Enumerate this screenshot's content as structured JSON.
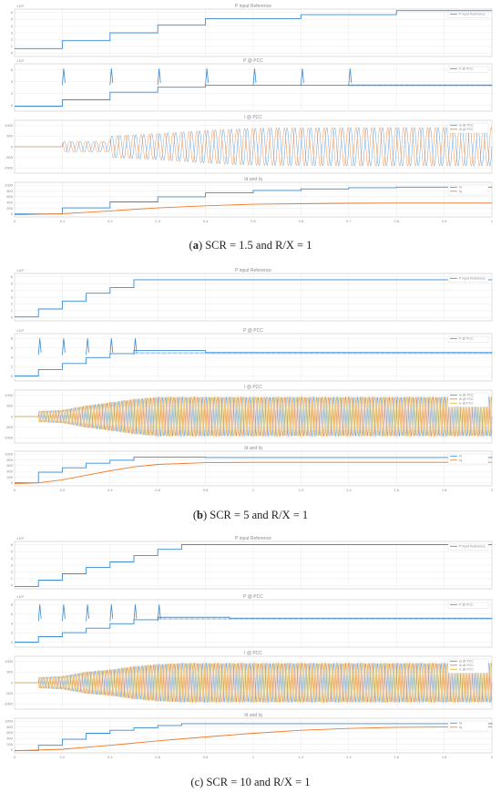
{
  "colors": {
    "blue": "#3c8bd4",
    "orange": "#f07a2a",
    "yellow": "#e8b925",
    "grid": "#e4e4e4",
    "frame": "#c8c8c8"
  },
  "captions": [
    {
      "letter": "a",
      "rest": ") SCR = 1.5 and R/X = 1"
    },
    {
      "letter": "b",
      "rest": ") SCR = 5 and R/X = 1"
    },
    {
      "letter": "c",
      "rest": ") SCR = 10 and R/X = 1"
    }
  ],
  "chart_data": [
    {
      "type": "line",
      "case": "a",
      "xlim": [
        0,
        1
      ],
      "x_ticks": [
        "0",
        "0.1",
        "0.2",
        "0.3",
        "0.4",
        "0.5",
        "0.6",
        "0.7",
        "0.8",
        "0.9",
        "1"
      ],
      "panels": [
        {
          "title": "P input Reference",
          "kind": "step",
          "exp": "×10⁶",
          "yticks": [
            "0",
            "1",
            "2",
            "3",
            "4",
            "5",
            "6"
          ],
          "ylim": [
            0,
            6
          ],
          "series": [
            {
              "name": "P input Reference",
              "color": "blue",
              "steps": [
                [
                  0,
                  1
                ],
                [
                  0.1,
                  2
                ],
                [
                  0.2,
                  3
                ],
                [
                  0.3,
                  4
                ],
                [
                  0.4,
                  4.8
                ],
                [
                  0.6,
                  5.3
                ],
                [
                  0.8,
                  5.8
                ],
                [
                  1,
                  5.8
                ]
              ]
            }
          ]
        },
        {
          "title": "P @ PCC",
          "kind": "step",
          "exp": "×10⁶",
          "yticks": [
            "0",
            "2",
            "4",
            "6"
          ],
          "ylim": [
            -0.5,
            7
          ],
          "series": [
            {
              "name": "P @ PCC",
              "color": "blue",
              "steps": [
                [
                  0,
                  0.3
                ],
                [
                  0.1,
                  1.3
                ],
                [
                  0.2,
                  2.5
                ],
                [
                  0.3,
                  3.3
                ],
                [
                  0.4,
                  3.6
                ],
                [
                  0.5,
                  3.6
                ],
                [
                  0.6,
                  3.6
                ],
                [
                  0.7,
                  3.6
                ],
                [
                  1,
                  3.6
                ]
              ],
              "spikes": [
                0.1,
                0.2,
                0.3,
                0.4,
                0.5,
                0.6,
                0.7
              ],
              "noise": 0.15
            }
          ]
        },
        {
          "title": "I @ PCC",
          "kind": "ac",
          "yticks": [
            "1000",
            "500",
            "0",
            "-500",
            "-1000"
          ],
          "ylim": [
            -1200,
            1200
          ],
          "envelope": [
            [
              0,
              0
            ],
            [
              0.1,
              0
            ],
            [
              0.1,
              250
            ],
            [
              0.2,
              250
            ],
            [
              0.2,
              500
            ],
            [
              0.3,
              600
            ],
            [
              0.4,
              750
            ],
            [
              0.5,
              850
            ],
            [
              0.7,
              880
            ],
            [
              1,
              880
            ]
          ],
          "series": [
            {
              "name": "ia @ PCC",
              "color": "blue"
            },
            {
              "name": "ib @ PCC",
              "color": "orange"
            }
          ]
        },
        {
          "title": "Id and Iq",
          "kind": "step",
          "yticks": [
            "1000",
            "800",
            "600",
            "400",
            "200",
            "0"
          ],
          "ylim": [
            -50,
            1100
          ],
          "series": [
            {
              "name": "Id",
              "color": "blue",
              "steps": [
                [
                  0,
                  50
                ],
                [
                  0.1,
                  250
                ],
                [
                  0.2,
                  450
                ],
                [
                  0.3,
                  620
                ],
                [
                  0.4,
                  750
                ],
                [
                  0.5,
                  830
                ],
                [
                  0.6,
                  880
                ],
                [
                  0.7,
                  920
                ],
                [
                  0.8,
                  940
                ],
                [
                  1,
                  940
                ]
              ]
            },
            {
              "name": "Iq",
              "color": "orange",
              "smooth": true,
              "points": [
                [
                  0,
                  20
                ],
                [
                  0.1,
                  60
                ],
                [
                  0.2,
                  150
                ],
                [
                  0.3,
                  250
                ],
                [
                  0.4,
                  320
                ],
                [
                  0.5,
                  370
                ],
                [
                  0.6,
                  390
                ],
                [
                  0.7,
                  405
                ],
                [
                  0.8,
                  410
                ],
                [
                  1,
                  410
                ]
              ]
            }
          ]
        }
      ]
    },
    {
      "type": "line",
      "case": "b",
      "xlim": [
        0,
        2
      ],
      "x_ticks": [
        "0",
        "0.2",
        "0.4",
        "0.6",
        "0.8",
        "1",
        "1.2",
        "1.4",
        "1.6",
        "1.8",
        "2"
      ],
      "panels": [
        {
          "title": "P input Reference",
          "kind": "step",
          "exp": "×10⁶",
          "yticks": [
            "0",
            "1",
            "2",
            "3",
            "4",
            "5",
            "6"
          ],
          "ylim": [
            0,
            6
          ],
          "series": [
            {
              "name": "P input Reference",
              "color": "blue",
              "steps": [
                [
                  0,
                  0.5
                ],
                [
                  0.1,
                  1.5
                ],
                [
                  0.2,
                  2.5
                ],
                [
                  0.3,
                  3.5
                ],
                [
                  0.4,
                  4.2
                ],
                [
                  0.5,
                  5.2
                ],
                [
                  2,
                  5.2
                ]
              ]
            }
          ]
        },
        {
          "title": "P @ PCC",
          "kind": "step",
          "exp": "×10⁶",
          "yticks": [
            "0",
            "2",
            "4",
            "6",
            "8"
          ],
          "ylim": [
            -0.5,
            9
          ],
          "series": [
            {
              "name": "P @ PCC",
              "color": "blue",
              "steps": [
                [
                  0,
                  0.5
                ],
                [
                  0.1,
                  1.8
                ],
                [
                  0.2,
                  3
                ],
                [
                  0.3,
                  4.2
                ],
                [
                  0.4,
                  5
                ],
                [
                  0.5,
                  5.6
                ],
                [
                  0.8,
                  5.2
                ],
                [
                  2,
                  5.1
                ]
              ],
              "spikes": [
                0.1,
                0.2,
                0.3,
                0.4,
                0.5
              ],
              "noise": 0.1
            }
          ]
        },
        {
          "title": "I @ PCC",
          "kind": "ac",
          "yticks": [
            "1000",
            "500",
            "0",
            "-500",
            "-1000"
          ],
          "ylim": [
            -1200,
            1200
          ],
          "envelope": [
            [
              0,
              0
            ],
            [
              0.1,
              0
            ],
            [
              0.1,
              250
            ],
            [
              0.2,
              300
            ],
            [
              0.3,
              500
            ],
            [
              0.4,
              650
            ],
            [
              0.5,
              800
            ],
            [
              0.6,
              900
            ],
            [
              2,
              900
            ]
          ],
          "series": [
            {
              "name": "ia @ PCC",
              "color": "blue"
            },
            {
              "name": "ib @ PCC",
              "color": "orange"
            },
            {
              "name": "ic @ PCC",
              "color": "yellow"
            }
          ]
        },
        {
          "title": "Id and Iq",
          "kind": "step",
          "yticks": [
            "1000",
            "800",
            "600",
            "400",
            "200",
            "0"
          ],
          "ylim": [
            -50,
            1100
          ],
          "series": [
            {
              "name": "Id",
              "color": "blue",
              "steps": [
                [
                  0,
                  50
                ],
                [
                  0.1,
                  400
                ],
                [
                  0.2,
                  550
                ],
                [
                  0.3,
                  700
                ],
                [
                  0.4,
                  800
                ],
                [
                  0.5,
                  900
                ],
                [
                  0.8,
                  890
                ],
                [
                  2,
                  880
                ]
              ]
            },
            {
              "name": "Iq",
              "color": "orange",
              "smooth": true,
              "points": [
                [
                  0,
                  20
                ],
                [
                  0.1,
                  50
                ],
                [
                  0.2,
                  150
                ],
                [
                  0.3,
                  300
                ],
                [
                  0.4,
                  450
                ],
                [
                  0.5,
                  580
                ],
                [
                  0.6,
                  660
                ],
                [
                  0.8,
                  720
                ],
                [
                  1,
                  730
                ],
                [
                  2,
                  730
                ]
              ]
            }
          ]
        }
      ]
    },
    {
      "type": "line",
      "case": "c",
      "xlim": [
        0,
        2
      ],
      "x_ticks": [
        "0",
        "0.2",
        "0.4",
        "0.6",
        "0.8",
        "1",
        "1.2",
        "1.4",
        "1.6",
        "1.8",
        "2"
      ],
      "panels": [
        {
          "title": "P input Reference",
          "kind": "step",
          "exp": "×10⁶",
          "yticks": [
            "0",
            "1",
            "2",
            "3",
            "4",
            "5",
            "6"
          ],
          "ylim": [
            0,
            6
          ],
          "series": [
            {
              "name": "P input Reference",
              "color": "blue",
              "steps": [
                [
                  0,
                  0.3
                ],
                [
                  0.1,
                  1.1
                ],
                [
                  0.2,
                  1.9
                ],
                [
                  0.3,
                  2.7
                ],
                [
                  0.4,
                  3.4
                ],
                [
                  0.5,
                  4.2
                ],
                [
                  0.6,
                  5
                ],
                [
                  0.7,
                  5.6
                ],
                [
                  2,
                  5.6
                ]
              ]
            }
          ]
        },
        {
          "title": "P @ PCC",
          "kind": "step",
          "exp": "×10⁶",
          "yticks": [
            "0",
            "2",
            "4",
            "6",
            "8"
          ],
          "ylim": [
            -0.5,
            9
          ],
          "series": [
            {
              "name": "P @ PCC",
              "color": "blue",
              "steps": [
                [
                  0,
                  0.5
                ],
                [
                  0.1,
                  1.6
                ],
                [
                  0.2,
                  2.4
                ],
                [
                  0.3,
                  3.3
                ],
                [
                  0.4,
                  4.2
                ],
                [
                  0.5,
                  5
                ],
                [
                  0.6,
                  5.5
                ],
                [
                  0.9,
                  5.3
                ],
                [
                  2,
                  5.2
                ]
              ],
              "spikes": [
                0.1,
                0.2,
                0.3,
                0.4,
                0.5,
                0.6
              ],
              "noise": 0.1
            }
          ]
        },
        {
          "title": "I @ PCC",
          "kind": "ac",
          "yticks": [
            "1000",
            "500",
            "0",
            "-500",
            "-1000"
          ],
          "ylim": [
            -1200,
            1200
          ],
          "envelope": [
            [
              0,
              0
            ],
            [
              0.1,
              0
            ],
            [
              0.1,
              250
            ],
            [
              0.2,
              300
            ],
            [
              0.3,
              500
            ],
            [
              0.4,
              600
            ],
            [
              0.5,
              750
            ],
            [
              0.6,
              850
            ],
            [
              0.7,
              900
            ],
            [
              2,
              900
            ]
          ],
          "series": [
            {
              "name": "ia @ PCC",
              "color": "blue"
            },
            {
              "name": "ib @ PCC",
              "color": "orange"
            },
            {
              "name": "ic @ PCC",
              "color": "yellow"
            }
          ]
        },
        {
          "title": "Id and Iq",
          "kind": "step",
          "yticks": [
            "1000",
            "800",
            "600",
            "400",
            "200",
            "0"
          ],
          "ylim": [
            -50,
            1100
          ],
          "series": [
            {
              "name": "Id",
              "color": "blue",
              "steps": [
                [
                  0,
                  30
                ],
                [
                  0.1,
                  200
                ],
                [
                  0.2,
                  400
                ],
                [
                  0.3,
                  600
                ],
                [
                  0.4,
                  700
                ],
                [
                  0.5,
                  780
                ],
                [
                  0.6,
                  860
                ],
                [
                  0.7,
                  920
                ],
                [
                  1,
                  920
                ],
                [
                  2,
                  900
                ]
              ]
            },
            {
              "name": "Iq",
              "color": "orange",
              "smooth": true,
              "points": [
                [
                  0,
                  20
                ],
                [
                  0.2,
                  70
                ],
                [
                  0.4,
                  200
                ],
                [
                  0.6,
                  350
                ],
                [
                  0.8,
                  480
                ],
                [
                  1,
                  600
                ],
                [
                  1.2,
                  700
                ],
                [
                  1.4,
                  760
                ],
                [
                  1.6,
                  800
                ],
                [
                  2,
                  820
                ]
              ]
            }
          ]
        }
      ]
    }
  ]
}
